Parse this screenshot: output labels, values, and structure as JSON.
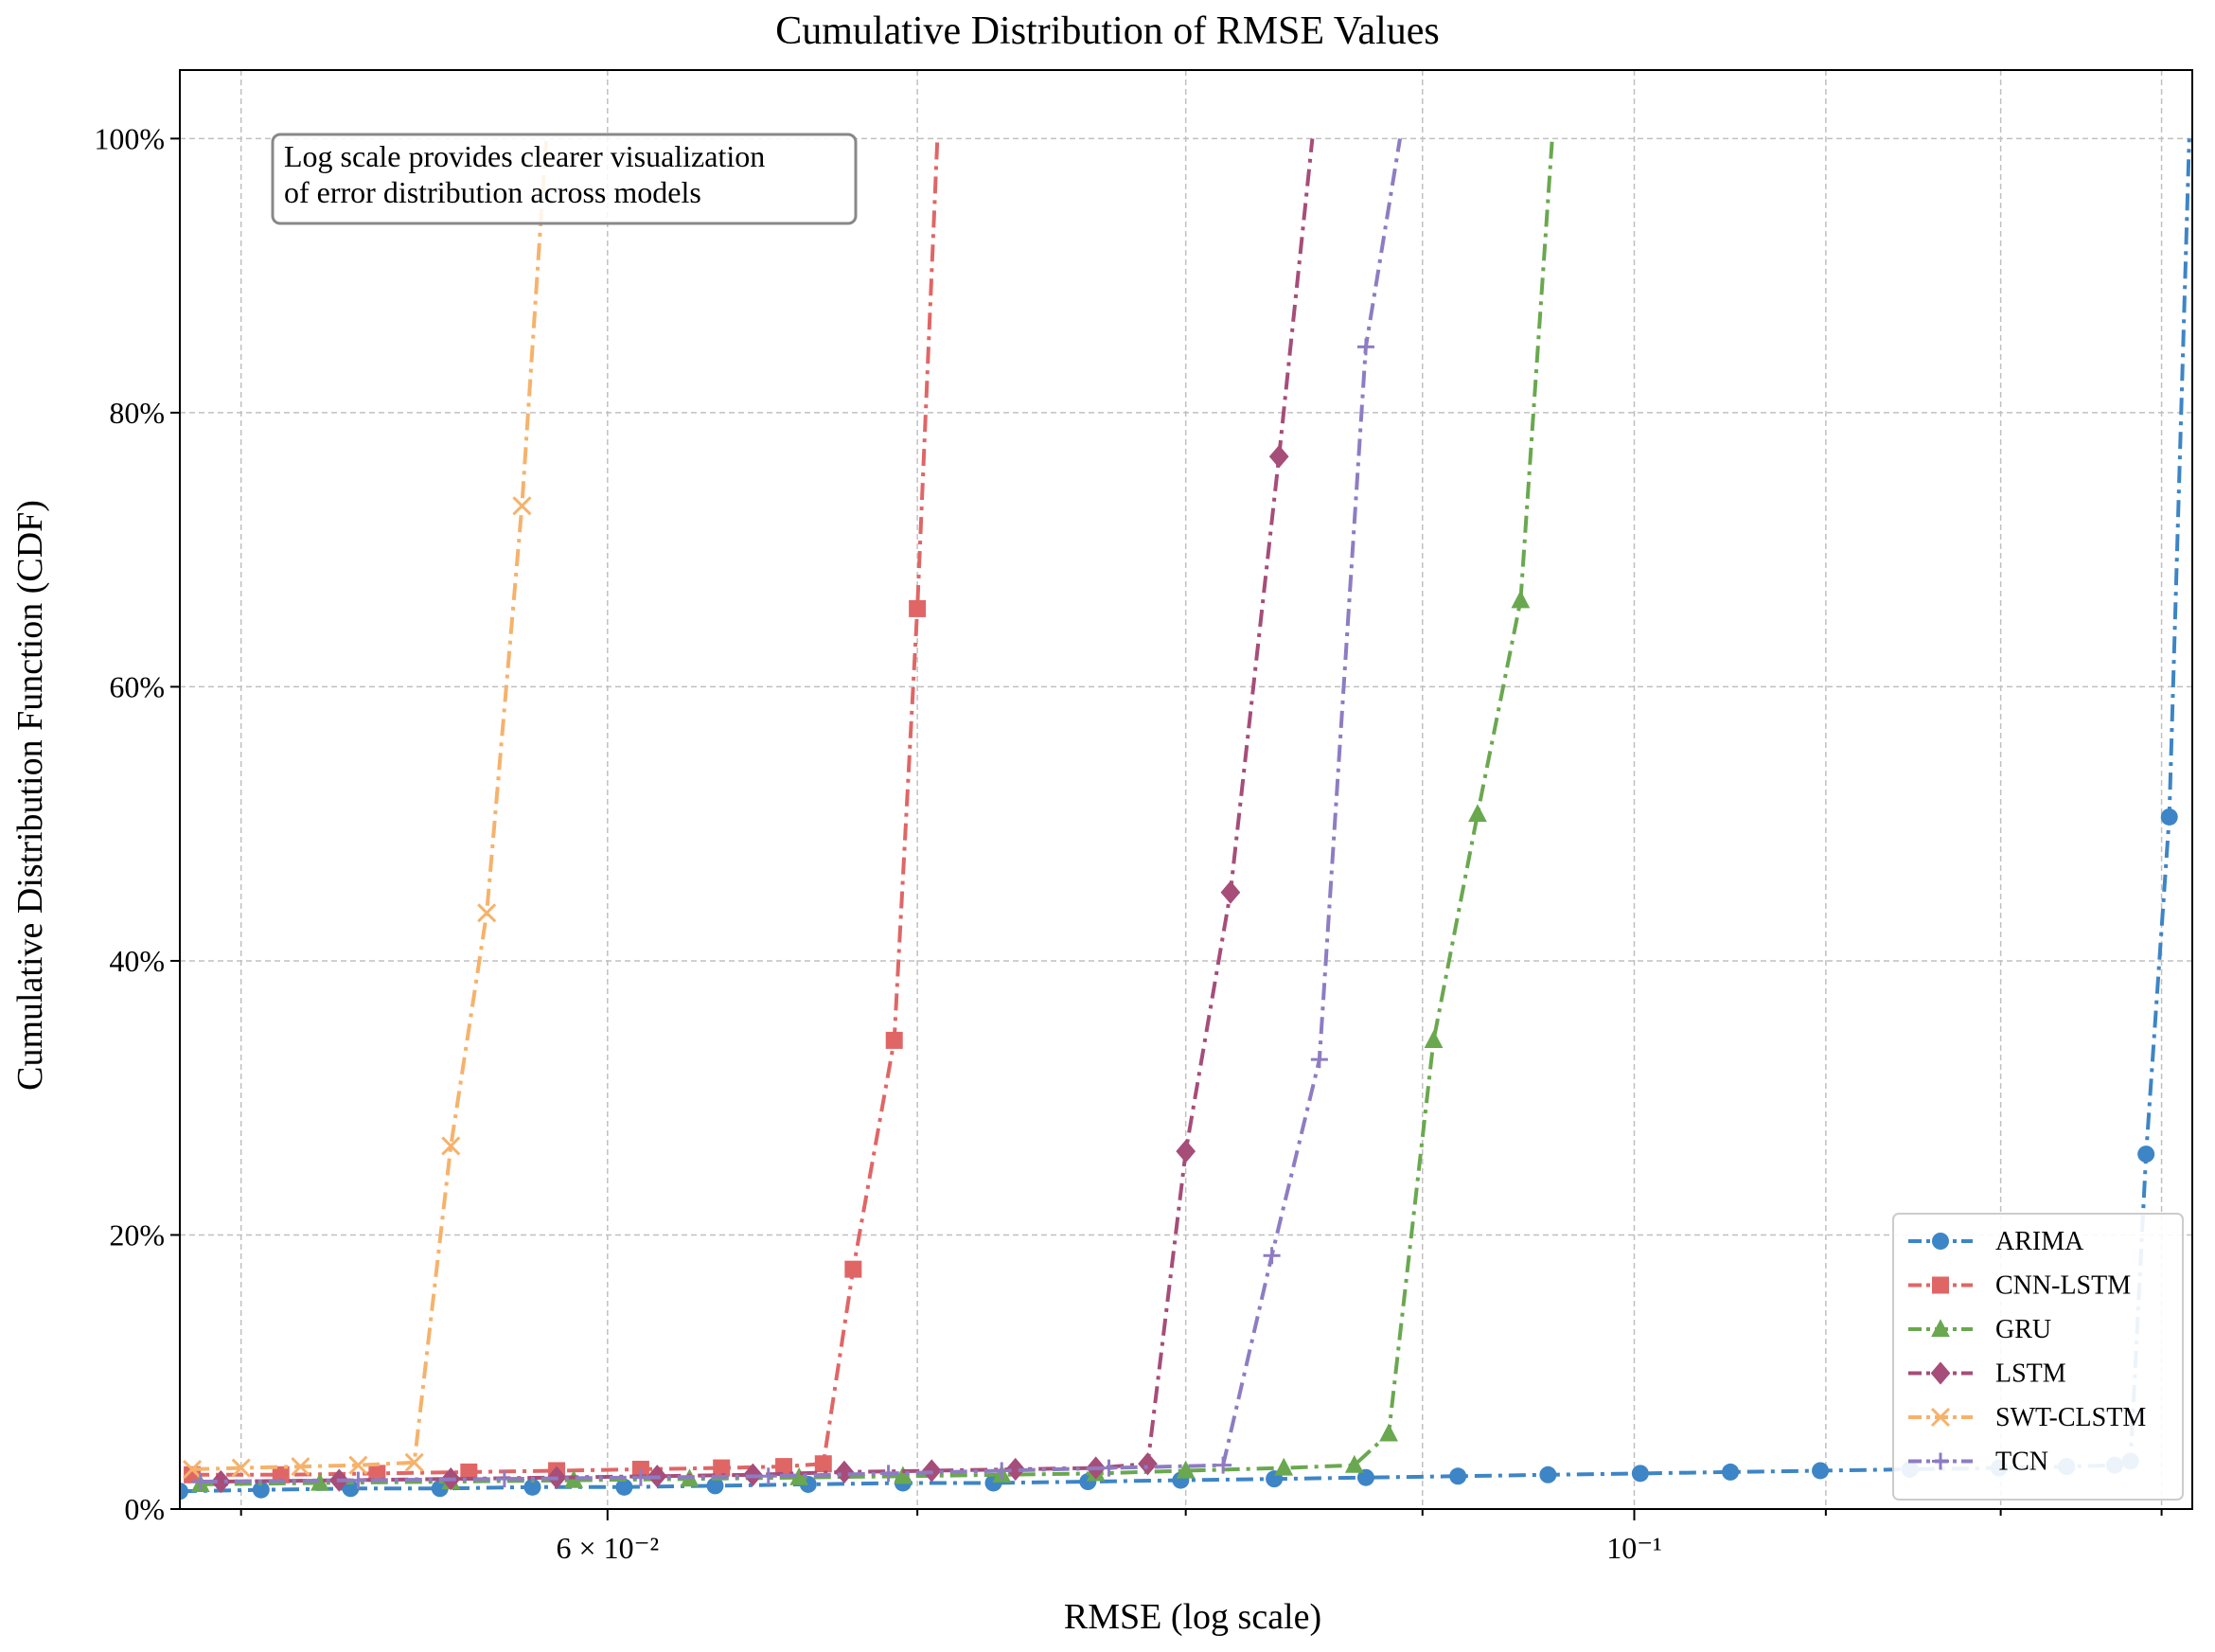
{
  "chart_data": {
    "type": "line",
    "title": "Cumulative Distribution of RMSE Values",
    "xlabel": "RMSE (log scale)",
    "ylabel": "Cumulative Distribution Function (CDF)",
    "x_scale": "log",
    "xlim": [
      0.0485,
      0.132
    ],
    "ylim": [
      0,
      1.05
    ],
    "x_ticks": [
      {
        "value": 0.06,
        "label": "6 × 10⁻²"
      },
      {
        "value": 0.1,
        "label": "10⁻¹"
      }
    ],
    "y_ticks": [
      {
        "value": 0,
        "label": "0%"
      },
      {
        "value": 0.2,
        "label": "20%"
      },
      {
        "value": 0.4,
        "label": "40%"
      },
      {
        "value": 0.6,
        "label": "60%"
      },
      {
        "value": 0.8,
        "label": "80%"
      },
      {
        "value": 1.0,
        "label": "100%"
      }
    ],
    "grid": true,
    "legend_position": "lower-right",
    "annotation": "Log scale provides clearer visualization\nof error distribution across models",
    "series": [
      {
        "name": "ARIMA",
        "color": "#3d85c6",
        "marker": "circle",
        "points": [
          [
            0.0485,
            0.013
          ],
          [
            0.0505,
            0.014
          ],
          [
            0.0528,
            0.015
          ],
          [
            0.0552,
            0.015
          ],
          [
            0.0578,
            0.016
          ],
          [
            0.0605,
            0.016
          ],
          [
            0.0633,
            0.017
          ],
          [
            0.0663,
            0.018
          ],
          [
            0.0695,
            0.019
          ],
          [
            0.0727,
            0.019
          ],
          [
            0.0762,
            0.02
          ],
          [
            0.0798,
            0.021
          ],
          [
            0.0836,
            0.022
          ],
          [
            0.0875,
            0.023
          ],
          [
            0.0916,
            0.024
          ],
          [
            0.0958,
            0.025
          ],
          [
            0.1003,
            0.026
          ],
          [
            0.1049,
            0.027
          ],
          [
            0.1097,
            0.028
          ],
          [
            0.1147,
            0.029
          ],
          [
            0.1199,
            0.03
          ],
          [
            0.124,
            0.031
          ],
          [
            0.127,
            0.032
          ],
          [
            0.128,
            0.035
          ],
          [
            0.129,
            0.259
          ],
          [
            0.1305,
            0.505
          ],
          [
            0.1318,
            1.0
          ]
        ]
      },
      {
        "name": "CNN-LSTM",
        "color": "#e06666",
        "marker": "square",
        "points": [
          [
            0.0488,
            0.025
          ],
          [
            0.051,
            0.025
          ],
          [
            0.0535,
            0.026
          ],
          [
            0.056,
            0.027
          ],
          [
            0.0585,
            0.028
          ],
          [
            0.061,
            0.029
          ],
          [
            0.0635,
            0.03
          ],
          [
            0.0655,
            0.031
          ],
          [
            0.0668,
            0.033
          ],
          [
            0.0678,
            0.175
          ],
          [
            0.0692,
            0.342
          ],
          [
            0.07,
            0.657
          ],
          [
            0.0707,
            1.0
          ]
        ]
      },
      {
        "name": "GRU",
        "color": "#6aa84f",
        "marker": "triangle",
        "points": [
          [
            0.049,
            0.018
          ],
          [
            0.052,
            0.019
          ],
          [
            0.0555,
            0.02
          ],
          [
            0.059,
            0.021
          ],
          [
            0.0625,
            0.022
          ],
          [
            0.066,
            0.023
          ],
          [
            0.0695,
            0.024
          ],
          [
            0.073,
            0.025
          ],
          [
            0.0765,
            0.026
          ],
          [
            0.08,
            0.028
          ],
          [
            0.084,
            0.03
          ],
          [
            0.087,
            0.032
          ],
          [
            0.0885,
            0.055
          ],
          [
            0.0905,
            0.342
          ],
          [
            0.0925,
            0.507
          ],
          [
            0.0945,
            0.663
          ],
          [
            0.096,
            1.0
          ]
        ]
      },
      {
        "name": "LSTM",
        "color": "#a64d79",
        "marker": "diamond",
        "points": [
          [
            0.0495,
            0.02
          ],
          [
            0.0525,
            0.021
          ],
          [
            0.0555,
            0.022
          ],
          [
            0.0585,
            0.023
          ],
          [
            0.0615,
            0.024
          ],
          [
            0.0645,
            0.025
          ],
          [
            0.0675,
            0.027
          ],
          [
            0.0705,
            0.028
          ],
          [
            0.0735,
            0.029
          ],
          [
            0.0765,
            0.03
          ],
          [
            0.0785,
            0.033
          ],
          [
            0.08,
            0.261
          ],
          [
            0.0818,
            0.45
          ],
          [
            0.0838,
            0.768
          ],
          [
            0.0852,
            1.0
          ]
        ]
      },
      {
        "name": "SWT-CLSTM",
        "color": "#f6b26b",
        "marker": "x",
        "points": [
          [
            0.0488,
            0.029
          ],
          [
            0.05,
            0.03
          ],
          [
            0.0515,
            0.031
          ],
          [
            0.053,
            0.032
          ],
          [
            0.0545,
            0.034
          ],
          [
            0.0555,
            0.265
          ],
          [
            0.0565,
            0.435
          ],
          [
            0.0575,
            0.732
          ],
          [
            0.0582,
            1.0
          ]
        ]
      },
      {
        "name": "TCN",
        "color": "#8e7cc3",
        "marker": "plus",
        "points": [
          [
            0.049,
            0.02
          ],
          [
            0.053,
            0.021
          ],
          [
            0.057,
            0.022
          ],
          [
            0.061,
            0.023
          ],
          [
            0.065,
            0.024
          ],
          [
            0.069,
            0.026
          ],
          [
            0.073,
            0.028
          ],
          [
            0.077,
            0.03
          ],
          [
            0.0815,
            0.032
          ],
          [
            0.0835,
            0.185
          ],
          [
            0.0855,
            0.328
          ],
          [
            0.0875,
            0.848
          ],
          [
            0.089,
            1.0
          ]
        ]
      }
    ]
  }
}
